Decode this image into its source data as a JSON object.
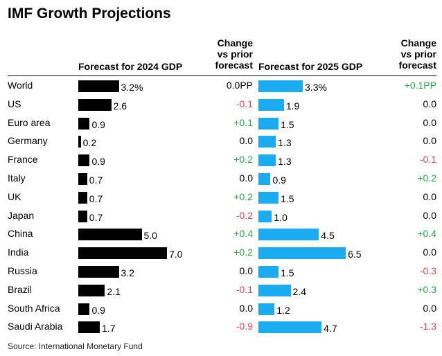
{
  "title": "IMF Growth Projections",
  "headers": {
    "forecast_2024": "Forecast for 2024 GDP",
    "change_2024": [
      "Change",
      "vs prior",
      "forecast"
    ],
    "forecast_2025": "Forecast for 2025 GDP",
    "change_2025": [
      "Change",
      "vs prior",
      "forecast"
    ]
  },
  "source": "Source: International Monetary Fund",
  "colors": {
    "bar_2024": "#000000",
    "bar_2025": "#1aabf0",
    "positive": "#2ea84a",
    "negative": "#e0485f",
    "neutral": "#000000"
  },
  "chart_data": {
    "type": "bar",
    "title": "IMF Growth Projections",
    "categories": [
      "World",
      "US",
      "Euro area",
      "Germany",
      "France",
      "Italy",
      "UK",
      "Japan",
      "China",
      "India",
      "Russia",
      "Brazil",
      "South Africa",
      "Saudi Arabia"
    ],
    "series": [
      {
        "name": "Forecast for 2024 GDP",
        "values": [
          3.2,
          2.6,
          0.9,
          0.2,
          0.9,
          0.7,
          0.7,
          0.7,
          5.0,
          7.0,
          3.2,
          2.1,
          0.9,
          1.7
        ],
        "labels": [
          "3.2%",
          "2.6",
          "0.9",
          "0.2",
          "0.9",
          "0.7",
          "0.7",
          "0.7",
          "5.0",
          "7.0",
          "3.2",
          "2.1",
          "0.9",
          "1.7"
        ],
        "changes": [
          "0.0PP",
          "-0.1",
          "+0.1",
          "0.0",
          "+0.2",
          "0.0",
          "+0.2",
          "-0.2",
          "+0.4",
          "+0.2",
          "0.0",
          "-0.1",
          "0.0",
          "-0.9"
        ]
      },
      {
        "name": "Forecast for 2025 GDP",
        "values": [
          3.3,
          1.9,
          1.5,
          1.3,
          1.3,
          0.9,
          1.5,
          1.0,
          4.5,
          6.5,
          1.5,
          2.4,
          1.2,
          4.7
        ],
        "labels": [
          "3.3%",
          "1.9",
          "1.5",
          "1.3",
          "1.3",
          "0.9",
          "1.5",
          "1.0",
          "4.5",
          "6.5",
          "1.5",
          "2.4",
          "1.2",
          "4.7"
        ],
        "changes": [
          "+0.1PP",
          "0.0",
          "0.0",
          "0.0",
          "-0.1",
          "+0.2",
          "0.0",
          "0.0",
          "+0.4",
          "0.0",
          "-0.3",
          "+0.3",
          "0.0",
          "-1.3"
        ]
      }
    ]
  }
}
